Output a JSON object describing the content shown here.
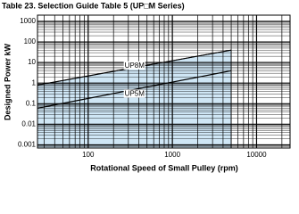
{
  "chart_data": {
    "type": "line",
    "title": "Table 23. Selection Guide Table 5 (UP□M Series)",
    "ylabel": "Designed Power kW",
    "xlabel": "Rotational Speed of Small Pulley (rpm)",
    "x": [
      25,
      5000
    ],
    "series": [
      {
        "name": "UP8M",
        "color": "#000000",
        "values": [
          0.8,
          40
        ]
      },
      {
        "name": "UP5M",
        "color": "#000000",
        "values": [
          0.06,
          4
        ]
      }
    ],
    "fill_color": "#cfe6f5",
    "xlim": [
      25,
      25000
    ],
    "ylim": [
      0.0007,
      2000
    ],
    "xticks": [
      100,
      1000,
      10000
    ],
    "yticks": [
      0.001,
      0.01,
      0.1,
      1,
      10,
      100,
      1000
    ],
    "xlog": true,
    "ylog": true,
    "grid": true,
    "minor_grid": true
  }
}
